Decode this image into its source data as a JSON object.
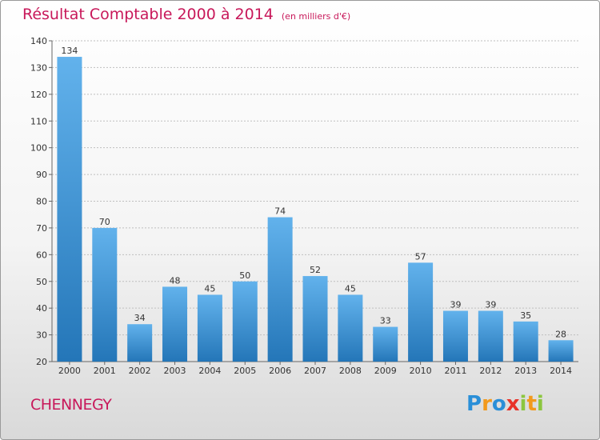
{
  "header": {
    "title": "Résultat Comptable 2000 à 2014",
    "subtitle": "(en milliers d'€)"
  },
  "footer": {
    "commune": "CHENNEGY",
    "logo": {
      "text": "Proxiti",
      "letters": [
        {
          "ch": "P",
          "color": "#2a8fd8"
        },
        {
          "ch": "r",
          "color": "#f29a1d"
        },
        {
          "ch": "o",
          "color": "#2a8fd8"
        },
        {
          "ch": "x",
          "color": "#e8332a"
        },
        {
          "ch": "i",
          "color": "#8cc63f"
        },
        {
          "ch": "t",
          "color": "#f29a1d"
        },
        {
          "ch": "i",
          "color": "#8cc63f"
        }
      ]
    }
  },
  "colors": {
    "title": "#c8185a",
    "bar_light": "#62b2ec",
    "bar_dark": "#2476b8",
    "grid": "#bfbfbf"
  },
  "chart_data": {
    "type": "bar",
    "title": "Résultat Comptable 2000 à 2014",
    "subtitle": "(en milliers d'€)",
    "xlabel": "",
    "ylabel": "",
    "categories": [
      "2000",
      "2001",
      "2002",
      "2003",
      "2004",
      "2005",
      "2006",
      "2007",
      "2008",
      "2009",
      "2010",
      "2011",
      "2012",
      "2013",
      "2014"
    ],
    "values": [
      134,
      70,
      34,
      48,
      45,
      50,
      74,
      52,
      45,
      33,
      57,
      39,
      39,
      35,
      28
    ],
    "ylim": [
      20,
      140
    ],
    "yticks": [
      20,
      30,
      40,
      50,
      60,
      70,
      80,
      90,
      100,
      110,
      120,
      130,
      140
    ],
    "grid": true,
    "data_labels": true
  }
}
